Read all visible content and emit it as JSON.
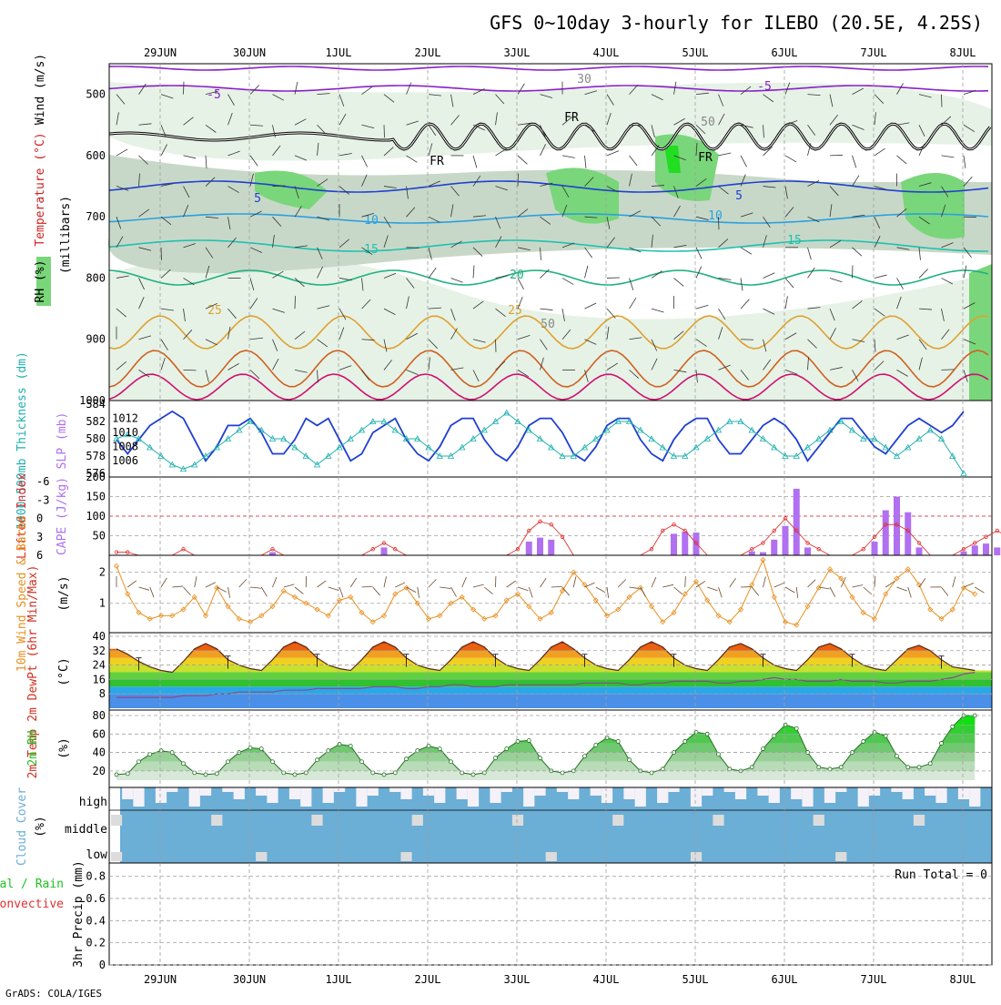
{
  "title": "GFS 0~10day 3-hourly for ILEBO (20.5E, 4.25S)",
  "footer": "GrADS: COLA/IGES",
  "dates": [
    "29JUN",
    "30JUN",
    "1JUL",
    "2JUL",
    "3JUL",
    "4JUL",
    "5JUL",
    "6JUL",
    "7JUL",
    "8JUL"
  ],
  "colors": {
    "frame": "#000000",
    "grid": "#a0a0a0",
    "rh_light": "#e6f2e6",
    "rh_mid": "#c8d8c8",
    "rh_dark": "#a8baa8",
    "rh_green": "#7ad67a",
    "rh_bright": "#22dd22",
    "slp": "#1f3fcf",
    "thickness": "#20b0b0",
    "cape": "#b070f0",
    "lifted": "#e03030",
    "wind10": "#e89020",
    "rh2m": "#20c020",
    "cloud": "#6baed6",
    "cloud_bg": "#f4f2f8"
  },
  "panels": {
    "upper": {
      "ylabels_left": [
        "Wind (m/s)",
        "Temperature (°C)",
        "RH (%)"
      ],
      "ylabel_units": "(millibars)",
      "yticks": [
        "500",
        "600",
        "700",
        "800",
        "900",
        "1000"
      ],
      "contour_labels": [
        "-5",
        "-5",
        "FR",
        "FR",
        "FR",
        "5",
        "5",
        "10",
        "10",
        "15",
        "15",
        "20",
        "25",
        "25",
        "30",
        "50",
        "50"
      ]
    },
    "slp": {
      "ylabel_left": "1000-500mb Thickness (dm)",
      "ylabel_right": "SLP (mb)",
      "yticks_left": [
        "576",
        "578",
        "580",
        "582",
        "584"
      ],
      "yticks_right": [
        "1006",
        "1008",
        "1010",
        "1012"
      ]
    },
    "cape": {
      "ylabel_left": "Lifted Index",
      "ylabel_right": "CAPE (J/kg)",
      "yticks_left": [
        "-6",
        "-3",
        "0",
        "3",
        "6"
      ],
      "yticks_right": [
        "50",
        "100",
        "150",
        "200"
      ]
    },
    "wind": {
      "ylabel": "10m Wind Speed & Barbs",
      "units": "(m/s)",
      "yticks": [
        "1",
        "2"
      ]
    },
    "temp": {
      "ylabel": "2m Temp 2m DewPt (6hr Min/Max)",
      "units": "(°C)",
      "yticks": [
        "8",
        "16",
        "24",
        "32",
        "40"
      ]
    },
    "rh2m": {
      "ylabel": "2m RH",
      "units": "(%)",
      "yticks": [
        "20",
        "40",
        "60",
        "80"
      ]
    },
    "cloud": {
      "ylabel": "Cloud Cover",
      "units": "(%)",
      "levels": [
        "high",
        "middle",
        "low"
      ]
    },
    "precip": {
      "ylabel_left": "Total / Rain",
      "ylabel_conv": "Convective",
      "ylabel_axis": "3hr Precip (mm)",
      "yticks": [
        "0",
        "0.2",
        "0.4",
        "0.6",
        "0.8"
      ],
      "run_total": "Run Total = 0"
    }
  },
  "chart_data": [
    {
      "type": "line",
      "title": "SLP (mb) and 1000-500mb Thickness (dm)",
      "x_start": "28JUN 12Z",
      "x_step_hours": 3,
      "series": [
        {
          "name": "SLP (mb)",
          "values": [
            1009,
            1007,
            1009,
            1011,
            1012,
            1013,
            1012,
            1009,
            1006,
            1008,
            1011,
            1011,
            1012,
            1010,
            1007,
            1007,
            1009,
            1012,
            1011,
            1012,
            1009,
            1006,
            1007,
            1010,
            1011,
            1012,
            1009,
            1007,
            1006,
            1008,
            1011,
            1012,
            1012,
            1009,
            1007,
            1006,
            1008,
            1011,
            1012,
            1012,
            1010,
            1007,
            1006,
            1008,
            1011,
            1012,
            1012,
            1009,
            1007,
            1006,
            1009,
            1011,
            1012,
            1012,
            1009,
            1007,
            1007,
            1009,
            1011,
            1012,
            1011,
            1009,
            1006,
            1008,
            1010,
            1012,
            1012,
            1010,
            1008,
            1007,
            1009,
            1011,
            1012,
            1011,
            1010,
            1011,
            1013
          ]
        },
        {
          "name": "Thickness (dm)",
          "values": [
            580,
            580.5,
            580,
            579,
            578,
            577,
            576.5,
            577,
            578,
            579,
            580,
            581,
            582,
            581,
            580,
            580,
            579,
            578,
            577,
            578,
            579,
            580,
            581,
            582,
            582,
            581,
            580,
            580,
            579,
            578,
            578,
            579,
            580,
            581,
            582,
            583,
            582,
            581,
            580,
            579,
            578,
            578,
            579,
            580,
            581,
            582,
            582,
            581,
            580,
            579,
            578,
            578,
            579,
            580,
            581,
            582,
            582,
            581,
            580,
            579,
            578,
            578,
            579,
            580,
            581,
            582,
            581,
            580,
            580,
            579,
            578,
            579,
            580,
            581,
            580,
            578,
            576
          ]
        }
      ]
    },
    {
      "type": "bar",
      "title": "CAPE (J/kg) and Lifted Index",
      "x_start": "28JUN 12Z",
      "x_step_hours": 3,
      "series": [
        {
          "name": "CAPE (J/kg)",
          "values": [
            0,
            0,
            0,
            0,
            0,
            0,
            0,
            0,
            0,
            0,
            0,
            0,
            0,
            0,
            8,
            0,
            0,
            0,
            0,
            0,
            0,
            0,
            0,
            0,
            20,
            0,
            0,
            0,
            0,
            0,
            0,
            0,
            0,
            0,
            0,
            0,
            0,
            35,
            45,
            40,
            0,
            0,
            0,
            0,
            0,
            0,
            0,
            0,
            0,
            0,
            55,
            60,
            58,
            0,
            0,
            0,
            0,
            10,
            8,
            40,
            75,
            170,
            20,
            0,
            0,
            0,
            0,
            0,
            35,
            115,
            150,
            110,
            20,
            0,
            0,
            0,
            10,
            25,
            30,
            20,
            5,
            10,
            70,
            95
          ]
        },
        {
          "name": "Lifted Index",
          "values": [
            5.5,
            5.5,
            6,
            6,
            6,
            6,
            5,
            6,
            6,
            6,
            6,
            6,
            6,
            6,
            5,
            6,
            6,
            6,
            6,
            6,
            6,
            6,
            6,
            5,
            4,
            5,
            6,
            6,
            6,
            6,
            6,
            6,
            6,
            6,
            6,
            6,
            5,
            2,
            0.5,
            1,
            3,
            6,
            6,
            6,
            6,
            6,
            6,
            6,
            5,
            2,
            1,
            2,
            4,
            6,
            6,
            6,
            6,
            5,
            4,
            2,
            0,
            2,
            4,
            5,
            6,
            6,
            6,
            5,
            3,
            1,
            1,
            2,
            4,
            6,
            6,
            6,
            5,
            4,
            3,
            2,
            3,
            2,
            0,
            1
          ]
        }
      ]
    },
    {
      "type": "line",
      "title": "10m Wind Speed (m/s)",
      "x_start": "28JUN 12Z",
      "x_step_hours": 3,
      "series": [
        {
          "name": "10m Wind Speed",
          "values": [
            2.2,
            1.3,
            0.7,
            0.5,
            0.6,
            0.6,
            0.8,
            1.2,
            0.6,
            1.5,
            0.9,
            0.5,
            0.4,
            0.6,
            0.9,
            1.4,
            1.2,
            1.0,
            0.8,
            0.6,
            1.1,
            1.2,
            0.7,
            0.4,
            0.6,
            1.3,
            1.5,
            1.0,
            0.5,
            0.6,
            1.0,
            1.2,
            0.8,
            0.5,
            0.6,
            1.1,
            1.3,
            0.9,
            0.5,
            0.7,
            1.4,
            2.0,
            1.6,
            1.1,
            0.6,
            0.8,
            1.2,
            1.5,
            0.9,
            0.4,
            0.7,
            1.3,
            1.7,
            1.1,
            0.6,
            0.4,
            0.8,
            1.6,
            2.4,
            1.2,
            0.4,
            0.3,
            0.9,
            1.5,
            2.1,
            1.8,
            1.2,
            0.7,
            0.5,
            1.3,
            1.8,
            2.1,
            1.6,
            0.8,
            0.5,
            0.8,
            1.5,
            1.3
          ]
        }
      ]
    },
    {
      "type": "line",
      "title": "2m Temp (°C)",
      "x_start": "28JUN 12Z",
      "x_step_hours": 3,
      "series": [
        {
          "name": "2m Temp",
          "values": [
            33,
            30,
            26,
            23,
            21,
            20,
            26,
            33,
            36,
            33,
            27,
            24,
            22,
            21,
            27,
            34,
            37,
            34,
            28,
            24,
            22,
            21,
            27,
            34,
            37,
            34,
            28,
            24,
            22,
            21,
            27,
            34,
            37,
            34,
            28,
            24,
            22,
            21,
            27,
            34,
            37,
            33,
            28,
            24,
            22,
            21,
            27,
            34,
            37,
            34,
            28,
            24,
            22,
            21,
            27,
            34,
            36,
            33,
            28,
            24,
            22,
            21,
            27,
            34,
            36,
            33,
            28,
            24,
            22,
            21,
            27,
            33,
            35,
            32,
            27,
            23,
            22,
            21
          ]
        },
        {
          "name": "2m DewPt",
          "values": [
            6,
            6,
            6,
            6,
            6,
            6,
            7,
            7,
            7,
            8,
            8,
            9,
            9,
            9,
            9,
            10,
            10,
            10,
            11,
            11,
            11,
            11,
            11,
            12,
            12,
            12,
            11,
            11,
            12,
            12,
            13,
            13,
            12,
            12,
            12,
            13,
            13,
            13,
            13,
            13,
            13,
            13,
            14,
            14,
            14,
            14,
            13,
            13,
            14,
            14,
            15,
            15,
            15,
            15,
            14,
            14,
            15,
            15,
            16,
            17,
            16,
            16,
            15,
            15,
            15,
            16,
            15,
            15,
            15,
            14,
            14,
            15,
            15,
            15,
            16,
            17,
            19,
            20
          ]
        }
      ]
    },
    {
      "type": "area",
      "title": "2m RH (%)",
      "x_start": "28JUN 12Z",
      "x_step_hours": 3,
      "series": [
        {
          "name": "2m RH",
          "values": [
            16,
            17,
            30,
            38,
            42,
            40,
            28,
            18,
            16,
            17,
            30,
            40,
            45,
            44,
            30,
            18,
            16,
            18,
            32,
            42,
            49,
            47,
            30,
            18,
            16,
            18,
            33,
            42,
            47,
            44,
            30,
            18,
            16,
            18,
            34,
            44,
            52,
            53,
            34,
            20,
            18,
            20,
            36,
            48,
            56,
            52,
            32,
            20,
            18,
            22,
            40,
            52,
            62,
            60,
            38,
            22,
            20,
            24,
            44,
            58,
            70,
            66,
            40,
            24,
            22,
            24,
            40,
            52,
            62,
            58,
            36,
            24,
            24,
            28,
            50,
            68,
            80,
            80
          ]
        }
      ]
    },
    {
      "type": "heatmap",
      "title": "Cloud Cover (%)",
      "rows": [
        "high",
        "middle",
        "low"
      ]
    },
    {
      "type": "bar",
      "title": "3hr Precip (mm)",
      "ylim": [
        0,
        0.9
      ],
      "series": [
        {
          "name": "Total / Rain",
          "values": []
        },
        {
          "name": "Convective",
          "values": []
        }
      ]
    }
  ]
}
